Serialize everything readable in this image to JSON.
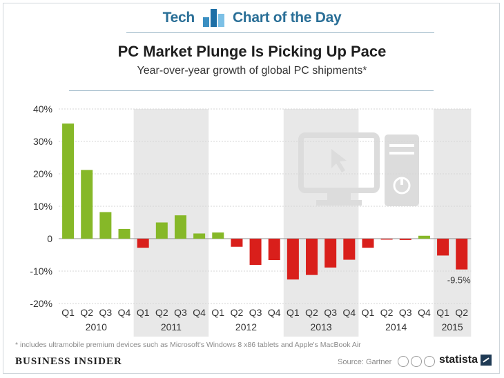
{
  "header": {
    "left_text": "Tech",
    "right_text": "Chart of the Day"
  },
  "chart_data": {
    "type": "bar",
    "title": "PC Market Plunge Is Picking Up Pace",
    "subtitle": "Year-over-year growth of global PC shipments*",
    "ylim": [
      -20,
      40
    ],
    "yticks": [
      40,
      30,
      20,
      10,
      0,
      -10,
      -20
    ],
    "ytick_labels": [
      "40%",
      "30%",
      "20%",
      "10%",
      "0",
      "-10%",
      "-20%"
    ],
    "categories": [
      "Q1",
      "Q2",
      "Q3",
      "Q4",
      "Q1",
      "Q2",
      "Q3",
      "Q4",
      "Q1",
      "Q2",
      "Q3",
      "Q4",
      "Q1",
      "Q2",
      "Q3",
      "Q4",
      "Q1",
      "Q2",
      "Q3",
      "Q4",
      "Q1",
      "Q2"
    ],
    "values": [
      35.5,
      21.2,
      8.2,
      3.0,
      -2.8,
      5.0,
      7.2,
      1.6,
      1.9,
      -2.5,
      -8.1,
      -6.6,
      -12.6,
      -11.2,
      -8.9,
      -6.5,
      -2.8,
      -0.3,
      -0.4,
      0.9,
      -5.2,
      -9.5
    ],
    "years": [
      {
        "label": "2010",
        "start": 0,
        "count": 4,
        "shaded": false
      },
      {
        "label": "2011",
        "start": 4,
        "count": 4,
        "shaded": true
      },
      {
        "label": "2012",
        "start": 8,
        "count": 4,
        "shaded": false
      },
      {
        "label": "2013",
        "start": 12,
        "count": 4,
        "shaded": true
      },
      {
        "label": "2014",
        "start": 16,
        "count": 4,
        "shaded": false
      },
      {
        "label": "2015",
        "start": 20,
        "count": 2,
        "shaded": true
      }
    ],
    "annotation": {
      "index": 21,
      "text": "-9.5%"
    },
    "positive_color": "#86b828",
    "negative_color": "#d91f1b",
    "shade_color": "#e8e8e8",
    "icon_color": "#dcdcdc"
  },
  "footer": {
    "footnote": "* includes ultramobile premium devices such as Microsoft's Windows 8 x86 tablets and Apple's MacBook Air",
    "publisher": "BUSINESS INSIDER",
    "source": "Source: Gartner",
    "brand": "statista"
  }
}
